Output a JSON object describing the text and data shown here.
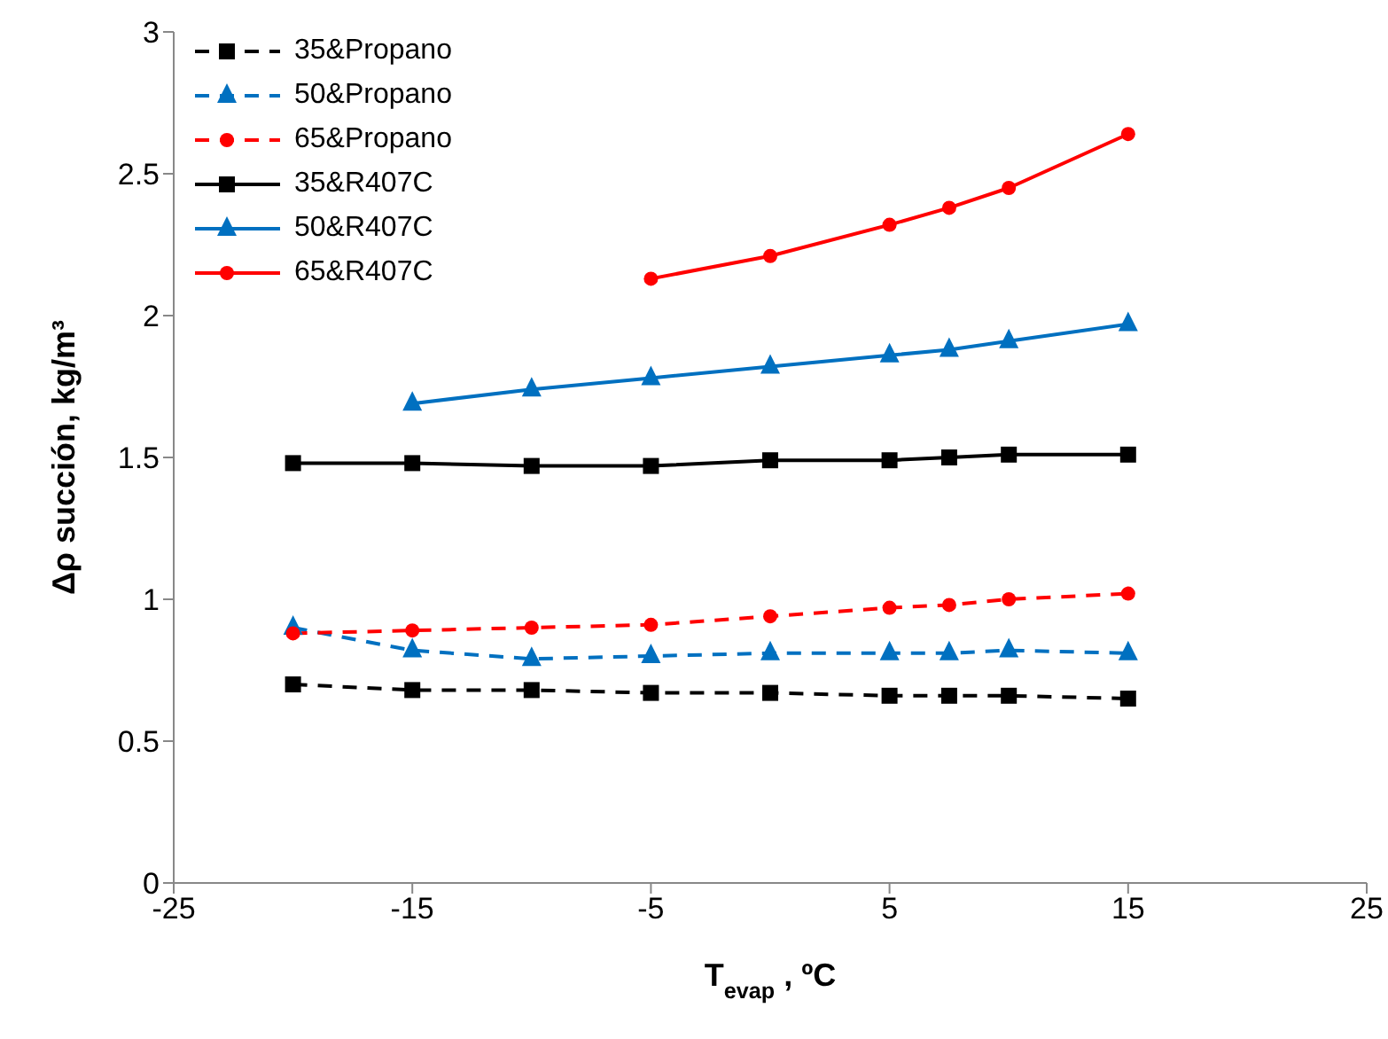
{
  "chart_data": {
    "type": "line",
    "xlabel": "T$_{evap}$ , ºC",
    "ylabel": "Δρ succión, kg/m³",
    "xlim": [
      -25,
      25
    ],
    "xticks": [
      -25,
      -15,
      -5,
      5,
      15,
      25
    ],
    "ylim": [
      0,
      3
    ],
    "yticks": [
      0,
      0.5,
      1,
      1.5,
      2,
      2.5,
      3
    ],
    "grid": false,
    "legend": "top left",
    "series": [
      {
        "name": "35&Propano",
        "color": "#000000",
        "marker": "square",
        "line_style": "dashed",
        "x": [
          -20,
          -15,
          -10,
          -5,
          0,
          5,
          7.5,
          10,
          15
        ],
        "values": [
          0.7,
          0.68,
          0.68,
          0.67,
          0.67,
          0.66,
          0.66,
          0.66,
          0.65
        ]
      },
      {
        "name": "50&Propano",
        "color": "#0070c0",
        "marker": "triangle",
        "line_style": "dashed",
        "x": [
          -20,
          -15,
          -10,
          -5,
          0,
          5,
          7.5,
          10,
          15
        ],
        "values": [
          0.9,
          0.82,
          0.79,
          0.8,
          0.81,
          0.81,
          0.81,
          0.82,
          0.81
        ]
      },
      {
        "name": "65&Propano",
        "color": "#ff0000",
        "marker": "circle",
        "line_style": "dashed",
        "x": [
          -20,
          -15,
          -10,
          -5,
          0,
          5,
          7.5,
          10,
          15
        ],
        "values": [
          0.88,
          0.89,
          0.9,
          0.91,
          0.94,
          0.97,
          0.98,
          1.0,
          1.02
        ]
      },
      {
        "name": "35&R407C",
        "color": "#000000",
        "marker": "square",
        "line_style": "solid",
        "x": [
          -20,
          -15,
          -10,
          -5,
          0,
          5,
          7.5,
          10,
          15
        ],
        "values": [
          1.48,
          1.48,
          1.47,
          1.47,
          1.49,
          1.49,
          1.5,
          1.51,
          1.51
        ]
      },
      {
        "name": "50&R407C",
        "color": "#0070c0",
        "marker": "triangle",
        "line_style": "solid",
        "x": [
          -15,
          -10,
          -5,
          0,
          5,
          7.5,
          10,
          15
        ],
        "values": [
          1.69,
          1.74,
          1.78,
          1.82,
          1.86,
          1.88,
          1.91,
          1.97
        ]
      },
      {
        "name": "65&R407C",
        "color": "#ff0000",
        "marker": "circle",
        "line_style": "solid",
        "x": [
          -5,
          0,
          5,
          7.5,
          10,
          15
        ],
        "values": [
          2.13,
          2.21,
          2.32,
          2.38,
          2.45,
          2.64
        ]
      }
    ]
  }
}
